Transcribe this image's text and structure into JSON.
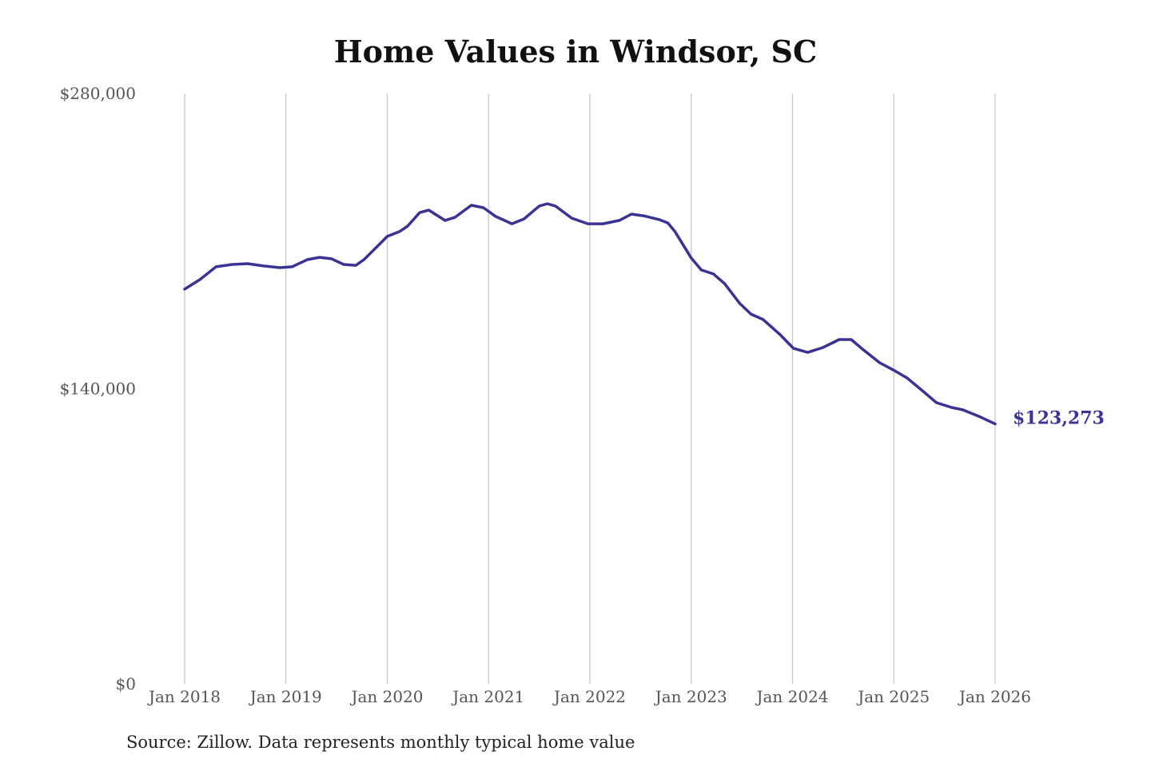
{
  "chart_data": {
    "type": "line",
    "title": "Home Values in Windsor, SC",
    "source": "Source: Zillow. Data represents monthly typical home value",
    "xlabel": "",
    "ylabel": "",
    "ylim": [
      0,
      280000
    ],
    "xlim": [
      2018,
      2026
    ],
    "y_ticks": [
      {
        "value": 0,
        "label": "$0"
      },
      {
        "value": 140000,
        "label": "$140,000"
      },
      {
        "value": 280000,
        "label": "$280,000"
      }
    ],
    "x_ticks": [
      {
        "value": 2018,
        "label": "Jan 2018"
      },
      {
        "value": 2019,
        "label": "Jan 2019"
      },
      {
        "value": 2020,
        "label": "Jan 2020"
      },
      {
        "value": 2021,
        "label": "Jan 2021"
      },
      {
        "value": 2022,
        "label": "Jan 2022"
      },
      {
        "value": 2023,
        "label": "Jan 2023"
      },
      {
        "value": 2024,
        "label": "Jan 2024"
      },
      {
        "value": 2025,
        "label": "Jan 2025"
      },
      {
        "value": 2026,
        "label": "Jan 2026"
      }
    ],
    "grid": "vertical",
    "series": [
      {
        "name": "Typical home value",
        "color": "#3a3394",
        "end_label": "$123,273",
        "points": [
          [
            2018.0,
            187200
          ],
          [
            2018.15,
            191700
          ],
          [
            2018.31,
            197800
          ],
          [
            2018.47,
            198900
          ],
          [
            2018.62,
            199300
          ],
          [
            2018.78,
            198200
          ],
          [
            2018.94,
            197400
          ],
          [
            2019.06,
            197800
          ],
          [
            2019.21,
            201200
          ],
          [
            2019.33,
            202300
          ],
          [
            2019.45,
            201600
          ],
          [
            2019.57,
            198900
          ],
          [
            2019.69,
            198500
          ],
          [
            2019.77,
            201200
          ],
          [
            2019.89,
            206900
          ],
          [
            2020.0,
            212200
          ],
          [
            2020.12,
            214500
          ],
          [
            2020.2,
            217100
          ],
          [
            2020.32,
            223500
          ],
          [
            2020.41,
            224700
          ],
          [
            2020.57,
            219800
          ],
          [
            2020.67,
            221300
          ],
          [
            2020.83,
            227000
          ],
          [
            2020.95,
            225800
          ],
          [
            2021.07,
            221700
          ],
          [
            2021.23,
            218200
          ],
          [
            2021.35,
            220500
          ],
          [
            2021.5,
            226600
          ],
          [
            2021.58,
            227700
          ],
          [
            2021.66,
            226600
          ],
          [
            2021.82,
            220900
          ],
          [
            2021.98,
            218200
          ],
          [
            2022.13,
            218200
          ],
          [
            2022.29,
            219800
          ],
          [
            2022.41,
            222800
          ],
          [
            2022.53,
            222000
          ],
          [
            2022.69,
            220100
          ],
          [
            2022.77,
            218600
          ],
          [
            2022.84,
            214500
          ],
          [
            2023.0,
            202000
          ],
          [
            2023.1,
            196300
          ],
          [
            2023.22,
            194400
          ],
          [
            2023.33,
            189800
          ],
          [
            2023.48,
            180400
          ],
          [
            2023.59,
            175400
          ],
          [
            2023.71,
            172800
          ],
          [
            2023.87,
            166000
          ],
          [
            2024.01,
            159100
          ],
          [
            2024.15,
            157200
          ],
          [
            2024.3,
            159500
          ],
          [
            2024.46,
            163300
          ],
          [
            2024.58,
            163300
          ],
          [
            2024.7,
            158400
          ],
          [
            2024.86,
            152300
          ],
          [
            2025.01,
            148500
          ],
          [
            2025.13,
            145100
          ],
          [
            2025.29,
            138700
          ],
          [
            2025.42,
            133400
          ],
          [
            2025.57,
            131100
          ],
          [
            2025.68,
            130000
          ],
          [
            2025.84,
            126900
          ],
          [
            2026.0,
            123273
          ]
        ]
      }
    ]
  }
}
